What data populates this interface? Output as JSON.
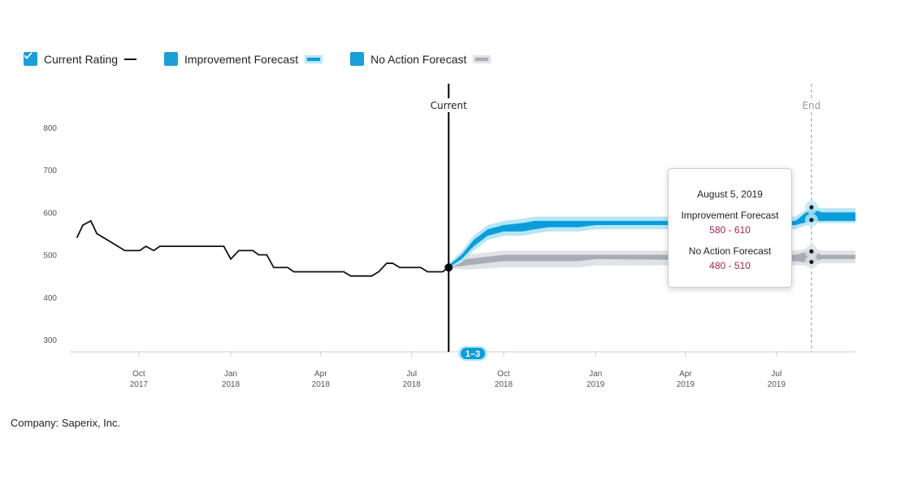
{
  "legend": {
    "items": [
      {
        "label": "Current Rating",
        "checked": true,
        "swatch": "line"
      },
      {
        "label": "Improvement Forecast",
        "checked": true,
        "swatch": "band-blue"
      },
      {
        "label": "No Action Forecast",
        "checked": true,
        "swatch": "band-gray"
      }
    ]
  },
  "markers": {
    "current_label": "Current",
    "end_label": "End",
    "badge": "1–3"
  },
  "tooltip": {
    "date": "August 5, 2019",
    "series": [
      {
        "name": "Improvement Forecast",
        "range": "580 - 610"
      },
      {
        "name": "No Action Forecast",
        "range": "480 - 510"
      }
    ]
  },
  "company": "Company: Saperix, Inc.",
  "colors": {
    "accent": "#1a9fd8",
    "improvement_dark": "#0a9dd9",
    "improvement_light": "#b5e6f7",
    "noaction_dark": "#a8adb5",
    "noaction_light": "#dfe2e6",
    "tooltip_value": "#a0284a"
  },
  "chart_data": {
    "type": "line",
    "xlim": [
      "2017-07-24",
      "2019-09-18"
    ],
    "ylim": [
      280,
      830
    ],
    "yticks": [
      300,
      400,
      500,
      600,
      700,
      800
    ],
    "xticks": [
      {
        "date": "2017-10-01",
        "label": [
          "Oct",
          "2017"
        ]
      },
      {
        "date": "2018-01-01",
        "label": [
          "Jan",
          "2018"
        ]
      },
      {
        "date": "2018-04-01",
        "label": [
          "Apr",
          "2018"
        ]
      },
      {
        "date": "2018-07-01",
        "label": [
          "Jul",
          "2018"
        ]
      },
      {
        "date": "2018-10-01",
        "label": [
          "Oct",
          "2018"
        ]
      },
      {
        "date": "2019-01-01",
        "label": [
          "Jan",
          "2019"
        ]
      },
      {
        "date": "2019-04-01",
        "label": [
          "Apr",
          "2019"
        ]
      },
      {
        "date": "2019-07-01",
        "label": [
          "Jul",
          "2019"
        ]
      }
    ],
    "current_date": "2018-08-07",
    "end_date": "2019-08-05",
    "series": [
      {
        "name": "Current Rating",
        "points": [
          [
            "2017-07-31",
            540
          ],
          [
            "2017-08-06",
            570
          ],
          [
            "2017-08-14",
            580
          ],
          [
            "2017-08-20",
            550
          ],
          [
            "2017-09-17",
            510
          ],
          [
            "2017-10-02",
            510
          ],
          [
            "2017-10-08",
            520
          ],
          [
            "2017-10-16",
            510
          ],
          [
            "2017-10-22",
            520
          ],
          [
            "2017-12-25",
            520
          ],
          [
            "2018-01-01",
            490
          ],
          [
            "2018-01-09",
            510
          ],
          [
            "2018-01-23",
            510
          ],
          [
            "2018-01-29",
            500
          ],
          [
            "2018-02-06",
            500
          ],
          [
            "2018-02-13",
            470
          ],
          [
            "2018-02-27",
            470
          ],
          [
            "2018-03-05",
            460
          ],
          [
            "2018-04-24",
            460
          ],
          [
            "2018-05-01",
            450
          ],
          [
            "2018-05-22",
            450
          ],
          [
            "2018-05-29",
            460
          ],
          [
            "2018-06-06",
            480
          ],
          [
            "2018-06-12",
            480
          ],
          [
            "2018-06-19",
            470
          ],
          [
            "2018-07-10",
            470
          ],
          [
            "2018-07-17",
            460
          ],
          [
            "2018-08-01",
            460
          ],
          [
            "2018-08-07",
            470
          ]
        ]
      },
      {
        "name": "Improvement Forecast",
        "band": [
          [
            "2018-08-07",
            470,
            475,
            468,
            478
          ],
          [
            "2018-08-20",
            490,
            500,
            482,
            508
          ],
          [
            "2018-09-01",
            520,
            535,
            510,
            545
          ],
          [
            "2018-09-15",
            545,
            560,
            535,
            570
          ],
          [
            "2018-10-01",
            555,
            570,
            545,
            580
          ],
          [
            "2018-10-20",
            555,
            575,
            545,
            585
          ],
          [
            "2018-11-01",
            560,
            580,
            550,
            590
          ],
          [
            "2018-11-15",
            565,
            580,
            555,
            590
          ],
          [
            "2018-12-15",
            565,
            580,
            555,
            590
          ],
          [
            "2019-01-01",
            570,
            580,
            560,
            590
          ],
          [
            "2019-07-20",
            570,
            580,
            560,
            590
          ],
          [
            "2019-08-05",
            580,
            610,
            575,
            615
          ],
          [
            "2019-08-15",
            580,
            600,
            575,
            610
          ],
          [
            "2019-09-18",
            580,
            600,
            575,
            610
          ]
        ]
      },
      {
        "name": "No Action Forecast",
        "band": [
          [
            "2018-08-07",
            470,
            475,
            468,
            478
          ],
          [
            "2018-08-25",
            475,
            490,
            465,
            500
          ],
          [
            "2018-10-01",
            485,
            500,
            470,
            510
          ],
          [
            "2018-12-15",
            485,
            500,
            470,
            510
          ],
          [
            "2019-01-01",
            490,
            500,
            475,
            510
          ],
          [
            "2019-07-20",
            485,
            500,
            475,
            510
          ],
          [
            "2019-08-05",
            480,
            510,
            475,
            515
          ],
          [
            "2019-08-15",
            490,
            500,
            480,
            510
          ],
          [
            "2019-09-18",
            490,
            500,
            480,
            510
          ]
        ]
      }
    ]
  }
}
